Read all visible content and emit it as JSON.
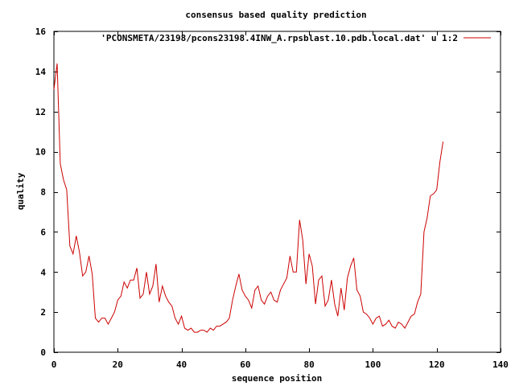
{
  "chart_data": {
    "type": "line",
    "title": "consensus based quality prediction",
    "xlabel": "sequence position",
    "ylabel": "quality",
    "xlim": [
      0,
      140
    ],
    "ylim": [
      0,
      16
    ],
    "xticks": [
      0,
      20,
      40,
      60,
      80,
      100,
      120,
      140
    ],
    "yticks": [
      0,
      2,
      4,
      6,
      8,
      10,
      12,
      14,
      16
    ],
    "grid": false,
    "legend_position": "top-right",
    "series": [
      {
        "name": "'PCONSMETA/23198/pcons23198.4INW_A.rpsblast.10.pdb.local.dat' u 1:2",
        "color": "#cc0000",
        "x": [
          0,
          1,
          2,
          3,
          4,
          5,
          6,
          7,
          8,
          9,
          10,
          11,
          12,
          13,
          14,
          15,
          16,
          17,
          18,
          19,
          20,
          21,
          22,
          23,
          24,
          25,
          26,
          27,
          28,
          29,
          30,
          31,
          32,
          33,
          34,
          35,
          36,
          37,
          38,
          39,
          40,
          41,
          42,
          43,
          44,
          45,
          46,
          47,
          48,
          49,
          50,
          51,
          52,
          53,
          54,
          55,
          56,
          57,
          58,
          59,
          60,
          61,
          62,
          63,
          64,
          65,
          66,
          67,
          68,
          69,
          70,
          71,
          72,
          73,
          74,
          75,
          76,
          77,
          78,
          79,
          80,
          81,
          82,
          83,
          84,
          85,
          86,
          87,
          88,
          89,
          90,
          91,
          92,
          93,
          94,
          95,
          96,
          97,
          98,
          99,
          100,
          101,
          102,
          103,
          104,
          105,
          106,
          107,
          108,
          109,
          110,
          111,
          112,
          113,
          114,
          115,
          116,
          117,
          118,
          119,
          120,
          121,
          122
        ],
        "values": [
          13.1,
          14.4,
          9.4,
          8.6,
          8.1,
          5.3,
          4.9,
          5.8,
          5.0,
          3.8,
          4.0,
          4.8,
          3.9,
          1.7,
          1.5,
          1.7,
          1.7,
          1.4,
          1.7,
          2.0,
          2.6,
          2.8,
          3.5,
          3.2,
          3.6,
          3.6,
          4.2,
          2.7,
          2.9,
          4.0,
          2.9,
          3.3,
          4.4,
          2.5,
          3.3,
          2.8,
          2.5,
          2.3,
          1.7,
          1.4,
          1.8,
          1.2,
          1.1,
          1.2,
          1.0,
          1.0,
          1.1,
          1.1,
          1.0,
          1.2,
          1.1,
          1.3,
          1.3,
          1.4,
          1.5,
          1.7,
          2.6,
          3.3,
          3.9,
          3.1,
          2.8,
          2.6,
          2.2,
          3.1,
          3.3,
          2.6,
          2.4,
          2.8,
          3.0,
          2.6,
          2.5,
          3.1,
          3.4,
          3.7,
          4.8,
          4.0,
          4.0,
          6.6,
          5.6,
          3.4,
          4.9,
          4.3,
          2.4,
          3.6,
          3.8,
          2.3,
          2.6,
          3.6,
          2.4,
          1.8,
          3.2,
          2.1,
          3.7,
          4.3,
          4.7,
          3.1,
          2.8,
          2.0,
          1.9,
          1.7,
          1.4,
          1.7,
          1.8,
          1.3,
          1.4,
          1.6,
          1.3,
          1.2,
          1.5,
          1.4,
          1.2,
          1.5,
          1.8,
          1.9,
          2.5,
          2.9,
          6.0,
          6.7,
          7.8,
          7.9,
          8.1,
          9.5,
          10.5
        ]
      }
    ]
  }
}
